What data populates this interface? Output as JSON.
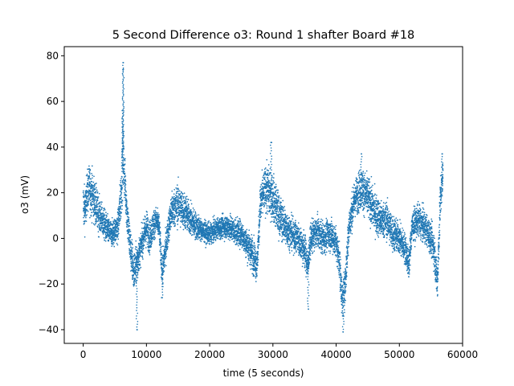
{
  "chart_data": {
    "type": "scatter",
    "title": "5 Second Difference o3: Round 1 shafter Board #18",
    "xlabel": "time (5 seconds)",
    "ylabel": "o3 (mV)",
    "xlim": [
      -3000,
      60000
    ],
    "ylim": [
      -46,
      84
    ],
    "xticks": [
      0,
      10000,
      20000,
      30000,
      40000,
      50000,
      60000
    ],
    "yticks": [
      -40,
      -20,
      0,
      20,
      40,
      60,
      80
    ],
    "grid": false,
    "legend": "none",
    "marker_color": "#1f77b4",
    "series": [
      {
        "values_shape": "dense trace",
        "envelope": [
          [
            0,
            15,
            9
          ],
          [
            300,
            12,
            8
          ],
          [
            600,
            20,
            8
          ],
          [
            1000,
            22,
            9
          ],
          [
            1500,
            19,
            9
          ],
          [
            2000,
            14,
            8
          ],
          [
            2500,
            10,
            7
          ],
          [
            3000,
            8,
            6
          ],
          [
            3500,
            5,
            6
          ],
          [
            4000,
            3,
            5
          ],
          [
            4500,
            2,
            5
          ],
          [
            5000,
            3,
            5
          ],
          [
            5500,
            5,
            6
          ],
          [
            6000,
            20,
            10
          ],
          [
            6300,
            36,
            12
          ],
          [
            6600,
            25,
            9
          ],
          [
            7000,
            8,
            8
          ],
          [
            7500,
            -5,
            8
          ],
          [
            8000,
            -15,
            8
          ],
          [
            8500,
            -10,
            7
          ],
          [
            9000,
            -5,
            6
          ],
          [
            9500,
            0,
            6
          ],
          [
            10000,
            5,
            7
          ],
          [
            10500,
            0,
            6
          ],
          [
            11000,
            5,
            6
          ],
          [
            11500,
            8,
            5
          ],
          [
            12000,
            5,
            5
          ],
          [
            12500,
            -15,
            7
          ],
          [
            13000,
            -5,
            6
          ],
          [
            13500,
            5,
            6
          ],
          [
            14000,
            12,
            7
          ],
          [
            15000,
            15,
            8
          ],
          [
            16000,
            12,
            7
          ],
          [
            17000,
            8,
            6
          ],
          [
            18000,
            5,
            5
          ],
          [
            19000,
            3,
            4
          ],
          [
            20000,
            2,
            4
          ],
          [
            21000,
            4,
            4
          ],
          [
            22000,
            5,
            4
          ],
          [
            23000,
            5,
            5
          ],
          [
            24000,
            3,
            5
          ],
          [
            25000,
            2,
            5
          ],
          [
            26000,
            -3,
            6
          ],
          [
            27000,
            -8,
            7
          ],
          [
            27500,
            -12,
            6
          ],
          [
            28000,
            15,
            8
          ],
          [
            28500,
            20,
            8
          ],
          [
            29000,
            22,
            9
          ],
          [
            29500,
            20,
            9
          ],
          [
            30000,
            18,
            9
          ],
          [
            31000,
            10,
            8
          ],
          [
            32000,
            5,
            7
          ],
          [
            33000,
            2,
            6
          ],
          [
            34000,
            0,
            6
          ],
          [
            35000,
            -5,
            7
          ],
          [
            35500,
            -12,
            6
          ],
          [
            36000,
            0,
            6
          ],
          [
            37000,
            3,
            6
          ],
          [
            38000,
            0,
            6
          ],
          [
            39000,
            2,
            6
          ],
          [
            40000,
            -2,
            6
          ],
          [
            40500,
            -10,
            7
          ],
          [
            41000,
            -28,
            8
          ],
          [
            41500,
            -18,
            8
          ],
          [
            42000,
            5,
            7
          ],
          [
            43000,
            18,
            7
          ],
          [
            44000,
            22,
            8
          ],
          [
            45000,
            18,
            8
          ],
          [
            46000,
            12,
            8
          ],
          [
            47000,
            8,
            7
          ],
          [
            48000,
            8,
            7
          ],
          [
            49000,
            2,
            7
          ],
          [
            50000,
            0,
            6
          ],
          [
            51000,
            -5,
            6
          ],
          [
            51500,
            -12,
            6
          ],
          [
            52000,
            5,
            6
          ],
          [
            53000,
            8,
            6
          ],
          [
            54000,
            5,
            6
          ],
          [
            55000,
            0,
            6
          ],
          [
            55500,
            -5,
            7
          ],
          [
            56000,
            -20,
            8
          ],
          [
            56500,
            18,
            9
          ],
          [
            56900,
            28,
            8
          ]
        ],
        "extremes": [
          [
            6300,
            77
          ],
          [
            6350,
            74
          ],
          [
            6200,
            56
          ],
          [
            41100,
            -41
          ],
          [
            8500,
            -40
          ],
          [
            29700,
            42
          ],
          [
            44000,
            37
          ],
          [
            56800,
            37
          ],
          [
            12500,
            -26
          ],
          [
            35600,
            -31
          ]
        ]
      }
    ]
  }
}
